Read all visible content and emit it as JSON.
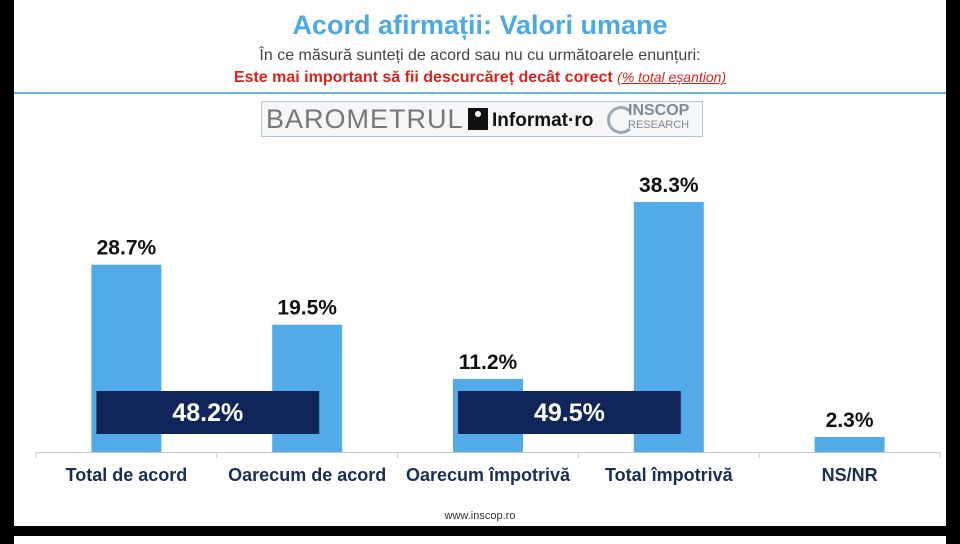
{
  "header": {
    "title": "Acord afirmații: Valori umane",
    "subtitle": "În ce măsură sunteți de acord sau nu cu următoarele enunțuri:",
    "question": "Este mai important să fii descurcăreț decât corect",
    "question_note": "(% total eșantion)"
  },
  "logo": {
    "barometru": "BAROMETRUL",
    "informat": "Informat",
    "informat_suffix": "ro",
    "inscop": "INSCOP",
    "research": "RESEARCH"
  },
  "chart_data": {
    "type": "bar",
    "categories": [
      "Total de acord",
      "Oarecum de acord",
      "Oarecum împotrivă",
      "Total împotrivă",
      "NS/NR"
    ],
    "values": [
      28.7,
      19.5,
      11.2,
      38.3,
      2.3
    ],
    "value_labels": [
      "28.7%",
      "19.5%",
      "11.2%",
      "38.3%",
      "2.3%"
    ],
    "ylim": [
      0,
      45
    ],
    "grid": false,
    "bar_color": "#52abe8",
    "aggregates": [
      {
        "label": "48.2%",
        "value": 48.2,
        "spans": [
          0,
          1
        ]
      },
      {
        "label": "49.5%",
        "value": 49.5,
        "spans": [
          2,
          3
        ]
      }
    ],
    "aggregate_color": "#10265b"
  },
  "footer": {
    "url": "www.inscop.ro"
  }
}
